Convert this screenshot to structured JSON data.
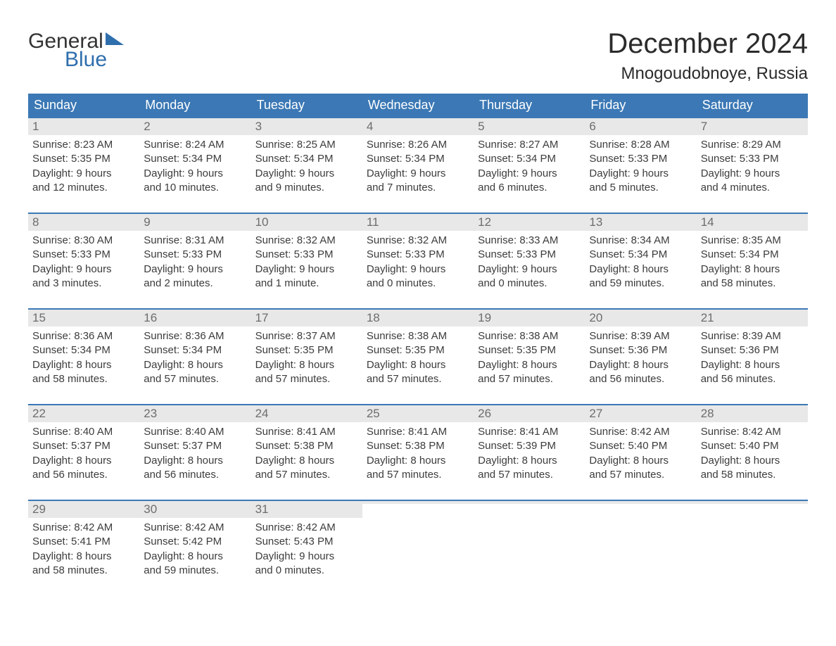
{
  "logo": {
    "top": "General",
    "bottom": "Blue",
    "triangle_color": "#2f6fad"
  },
  "title": "December 2024",
  "location": "Mnogoudobnoye, Russia",
  "colors": {
    "header_bg": "#3b78b5",
    "header_text": "#ffffff",
    "daynum_bg": "#e8e8e8",
    "daynum_text": "#6d6d6d",
    "body_text": "#3c3c3c",
    "week_border": "#3b78b5",
    "title_text": "#2b2b2b",
    "logo_blue": "#2f6fad"
  },
  "typography": {
    "title_fontsize": 40,
    "location_fontsize": 24,
    "weekday_fontsize": 18,
    "daynum_fontsize": 17,
    "body_fontsize": 15
  },
  "weekdays": [
    "Sunday",
    "Monday",
    "Tuesday",
    "Wednesday",
    "Thursday",
    "Friday",
    "Saturday"
  ],
  "weeks": [
    [
      {
        "n": "1",
        "sr": "Sunrise: 8:23 AM",
        "ss": "Sunset: 5:35 PM",
        "d1": "Daylight: 9 hours",
        "d2": "and 12 minutes."
      },
      {
        "n": "2",
        "sr": "Sunrise: 8:24 AM",
        "ss": "Sunset: 5:34 PM",
        "d1": "Daylight: 9 hours",
        "d2": "and 10 minutes."
      },
      {
        "n": "3",
        "sr": "Sunrise: 8:25 AM",
        "ss": "Sunset: 5:34 PM",
        "d1": "Daylight: 9 hours",
        "d2": "and 9 minutes."
      },
      {
        "n": "4",
        "sr": "Sunrise: 8:26 AM",
        "ss": "Sunset: 5:34 PM",
        "d1": "Daylight: 9 hours",
        "d2": "and 7 minutes."
      },
      {
        "n": "5",
        "sr": "Sunrise: 8:27 AM",
        "ss": "Sunset: 5:34 PM",
        "d1": "Daylight: 9 hours",
        "d2": "and 6 minutes."
      },
      {
        "n": "6",
        "sr": "Sunrise: 8:28 AM",
        "ss": "Sunset: 5:33 PM",
        "d1": "Daylight: 9 hours",
        "d2": "and 5 minutes."
      },
      {
        "n": "7",
        "sr": "Sunrise: 8:29 AM",
        "ss": "Sunset: 5:33 PM",
        "d1": "Daylight: 9 hours",
        "d2": "and 4 minutes."
      }
    ],
    [
      {
        "n": "8",
        "sr": "Sunrise: 8:30 AM",
        "ss": "Sunset: 5:33 PM",
        "d1": "Daylight: 9 hours",
        "d2": "and 3 minutes."
      },
      {
        "n": "9",
        "sr": "Sunrise: 8:31 AM",
        "ss": "Sunset: 5:33 PM",
        "d1": "Daylight: 9 hours",
        "d2": "and 2 minutes."
      },
      {
        "n": "10",
        "sr": "Sunrise: 8:32 AM",
        "ss": "Sunset: 5:33 PM",
        "d1": "Daylight: 9 hours",
        "d2": "and 1 minute."
      },
      {
        "n": "11",
        "sr": "Sunrise: 8:32 AM",
        "ss": "Sunset: 5:33 PM",
        "d1": "Daylight: 9 hours",
        "d2": "and 0 minutes."
      },
      {
        "n": "12",
        "sr": "Sunrise: 8:33 AM",
        "ss": "Sunset: 5:33 PM",
        "d1": "Daylight: 9 hours",
        "d2": "and 0 minutes."
      },
      {
        "n": "13",
        "sr": "Sunrise: 8:34 AM",
        "ss": "Sunset: 5:34 PM",
        "d1": "Daylight: 8 hours",
        "d2": "and 59 minutes."
      },
      {
        "n": "14",
        "sr": "Sunrise: 8:35 AM",
        "ss": "Sunset: 5:34 PM",
        "d1": "Daylight: 8 hours",
        "d2": "and 58 minutes."
      }
    ],
    [
      {
        "n": "15",
        "sr": "Sunrise: 8:36 AM",
        "ss": "Sunset: 5:34 PM",
        "d1": "Daylight: 8 hours",
        "d2": "and 58 minutes."
      },
      {
        "n": "16",
        "sr": "Sunrise: 8:36 AM",
        "ss": "Sunset: 5:34 PM",
        "d1": "Daylight: 8 hours",
        "d2": "and 57 minutes."
      },
      {
        "n": "17",
        "sr": "Sunrise: 8:37 AM",
        "ss": "Sunset: 5:35 PM",
        "d1": "Daylight: 8 hours",
        "d2": "and 57 minutes."
      },
      {
        "n": "18",
        "sr": "Sunrise: 8:38 AM",
        "ss": "Sunset: 5:35 PM",
        "d1": "Daylight: 8 hours",
        "d2": "and 57 minutes."
      },
      {
        "n": "19",
        "sr": "Sunrise: 8:38 AM",
        "ss": "Sunset: 5:35 PM",
        "d1": "Daylight: 8 hours",
        "d2": "and 57 minutes."
      },
      {
        "n": "20",
        "sr": "Sunrise: 8:39 AM",
        "ss": "Sunset: 5:36 PM",
        "d1": "Daylight: 8 hours",
        "d2": "and 56 minutes."
      },
      {
        "n": "21",
        "sr": "Sunrise: 8:39 AM",
        "ss": "Sunset: 5:36 PM",
        "d1": "Daylight: 8 hours",
        "d2": "and 56 minutes."
      }
    ],
    [
      {
        "n": "22",
        "sr": "Sunrise: 8:40 AM",
        "ss": "Sunset: 5:37 PM",
        "d1": "Daylight: 8 hours",
        "d2": "and 56 minutes."
      },
      {
        "n": "23",
        "sr": "Sunrise: 8:40 AM",
        "ss": "Sunset: 5:37 PM",
        "d1": "Daylight: 8 hours",
        "d2": "and 56 minutes."
      },
      {
        "n": "24",
        "sr": "Sunrise: 8:41 AM",
        "ss": "Sunset: 5:38 PM",
        "d1": "Daylight: 8 hours",
        "d2": "and 57 minutes."
      },
      {
        "n": "25",
        "sr": "Sunrise: 8:41 AM",
        "ss": "Sunset: 5:38 PM",
        "d1": "Daylight: 8 hours",
        "d2": "and 57 minutes."
      },
      {
        "n": "26",
        "sr": "Sunrise: 8:41 AM",
        "ss": "Sunset: 5:39 PM",
        "d1": "Daylight: 8 hours",
        "d2": "and 57 minutes."
      },
      {
        "n": "27",
        "sr": "Sunrise: 8:42 AM",
        "ss": "Sunset: 5:40 PM",
        "d1": "Daylight: 8 hours",
        "d2": "and 57 minutes."
      },
      {
        "n": "28",
        "sr": "Sunrise: 8:42 AM",
        "ss": "Sunset: 5:40 PM",
        "d1": "Daylight: 8 hours",
        "d2": "and 58 minutes."
      }
    ],
    [
      {
        "n": "29",
        "sr": "Sunrise: 8:42 AM",
        "ss": "Sunset: 5:41 PM",
        "d1": "Daylight: 8 hours",
        "d2": "and 58 minutes."
      },
      {
        "n": "30",
        "sr": "Sunrise: 8:42 AM",
        "ss": "Sunset: 5:42 PM",
        "d1": "Daylight: 8 hours",
        "d2": "and 59 minutes."
      },
      {
        "n": "31",
        "sr": "Sunrise: 8:42 AM",
        "ss": "Sunset: 5:43 PM",
        "d1": "Daylight: 9 hours",
        "d2": "and 0 minutes."
      },
      {
        "n": "",
        "sr": "",
        "ss": "",
        "d1": "",
        "d2": ""
      },
      {
        "n": "",
        "sr": "",
        "ss": "",
        "d1": "",
        "d2": ""
      },
      {
        "n": "",
        "sr": "",
        "ss": "",
        "d1": "",
        "d2": ""
      },
      {
        "n": "",
        "sr": "",
        "ss": "",
        "d1": "",
        "d2": ""
      }
    ]
  ]
}
